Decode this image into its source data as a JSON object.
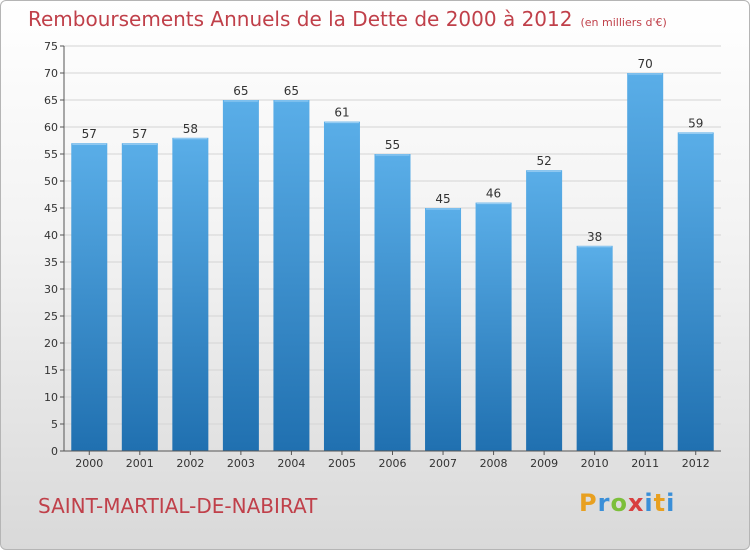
{
  "header": {
    "title": "Remboursements Annuels de la Dette de 2000 à 2012",
    "subtitle": "(en milliers d'€)"
  },
  "footer": {
    "commune": "SAINT-MARTIAL-DE-NABIRAT",
    "brand_letters": [
      "P",
      "r",
      "o",
      "x",
      "i",
      "t",
      "i"
    ],
    "brand_colors": [
      "#e8a020",
      "#3a8fd8",
      "#7cbf3a",
      "#d84040",
      "#3a8fd8",
      "#e8a020",
      "#3a8fd8"
    ]
  },
  "colors": {
    "bar": "#3a8fd0",
    "bar_light": "#5aaee8",
    "bar_dark": "#2070b0",
    "title": "#c0404a"
  },
  "chart_data": {
    "type": "bar",
    "title": "Remboursements Annuels de la Dette de 2000 à 2012",
    "subtitle": "(en milliers d'€)",
    "categories": [
      "2000",
      "2001",
      "2002",
      "2003",
      "2004",
      "2005",
      "2006",
      "2007",
      "2008",
      "2009",
      "2010",
      "2011",
      "2012"
    ],
    "values": [
      57,
      57,
      58,
      65,
      65,
      61,
      55,
      45,
      46,
      52,
      38,
      70,
      59
    ],
    "ylim": [
      0,
      75
    ],
    "yticks": [
      0,
      5,
      10,
      15,
      20,
      25,
      30,
      35,
      40,
      45,
      50,
      55,
      60,
      65,
      70,
      75
    ],
    "grid": true,
    "data_labels": true
  }
}
